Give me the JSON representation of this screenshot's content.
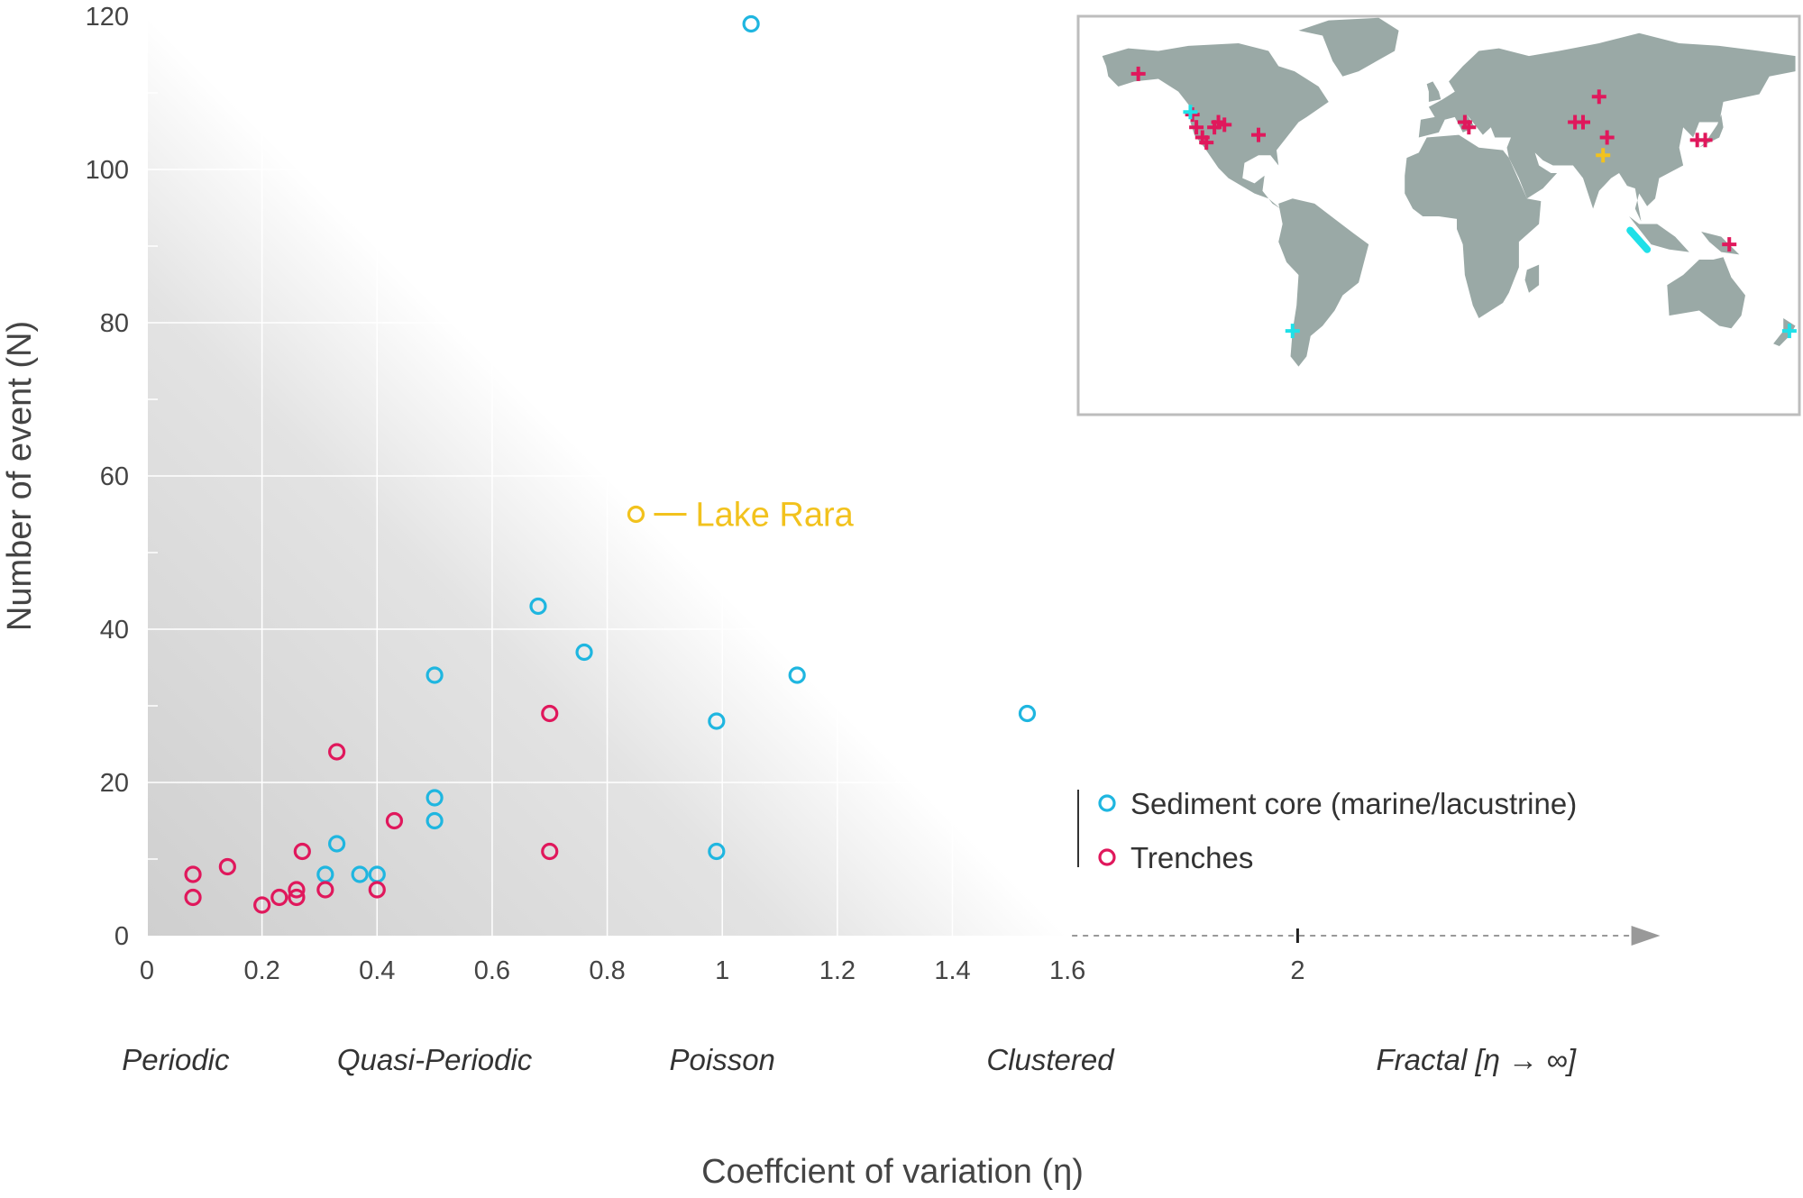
{
  "chart_data": {
    "type": "scatter",
    "xlabel": "Coeffcient of variation (η)",
    "ylabel": "Number of event (N)",
    "xlim": [
      0,
      2.63
    ],
    "ylim": [
      0,
      120
    ],
    "x_ticks": [
      "0",
      "0.2",
      "0.4",
      "0.6",
      "0.8",
      "1",
      "1.2",
      "1.4",
      "1.6",
      "2"
    ],
    "y_ticks": [
      "0",
      "20",
      "40",
      "60",
      "80",
      "100",
      "120"
    ],
    "grid": true,
    "background": "grey gradient in triangular area under diagonal from (0,120) to (1.6,0)",
    "regimes": [
      {
        "label": "Periodic",
        "x": 0.05
      },
      {
        "label": "Quasi-Periodic",
        "x": 0.5
      },
      {
        "label": "Poisson",
        "x": 1.0
      },
      {
        "label": "Clustered",
        "x": 1.57
      },
      {
        "label": "Fractal [η → ∞]",
        "x": 2.31
      }
    ],
    "legend_position": "lower-right",
    "series": [
      {
        "name": "Sediment core (marine/lacustrine)",
        "color": "#1fb6e0",
        "marker": "open-circle",
        "points": [
          {
            "x": 0.31,
            "y": 8
          },
          {
            "x": 0.33,
            "y": 12
          },
          {
            "x": 0.37,
            "y": 8
          },
          {
            "x": 0.4,
            "y": 8
          },
          {
            "x": 0.5,
            "y": 15
          },
          {
            "x": 0.5,
            "y": 18
          },
          {
            "x": 0.5,
            "y": 34
          },
          {
            "x": 0.68,
            "y": 43
          },
          {
            "x": 0.76,
            "y": 37
          },
          {
            "x": 0.99,
            "y": 11
          },
          {
            "x": 0.99,
            "y": 28
          },
          {
            "x": 1.05,
            "y": 119
          },
          {
            "x": 1.13,
            "y": 34
          },
          {
            "x": 1.53,
            "y": 29
          }
        ]
      },
      {
        "name": "Trenches",
        "color": "#e0185c",
        "marker": "open-circle",
        "points": [
          {
            "x": 0.08,
            "y": 5
          },
          {
            "x": 0.08,
            "y": 8
          },
          {
            "x": 0.14,
            "y": 9
          },
          {
            "x": 0.2,
            "y": 4
          },
          {
            "x": 0.23,
            "y": 5
          },
          {
            "x": 0.26,
            "y": 5
          },
          {
            "x": 0.26,
            "y": 6
          },
          {
            "x": 0.27,
            "y": 11
          },
          {
            "x": 0.31,
            "y": 6
          },
          {
            "x": 0.33,
            "y": 24
          },
          {
            "x": 0.4,
            "y": 6
          },
          {
            "x": 0.43,
            "y": 15
          },
          {
            "x": 0.7,
            "y": 11
          },
          {
            "x": 0.7,
            "y": 29
          }
        ]
      }
    ],
    "highlight": {
      "label": "Lake Rara",
      "x": 0.85,
      "y": 55,
      "color": "#f2c21d"
    }
  },
  "inset_map": {
    "land_color": "#9aa9a6",
    "markers": [
      {
        "color": "#e0185c",
        "lon": -150,
        "lat": 61
      },
      {
        "color": "#e0185c",
        "lon": -123,
        "lat": 45
      },
      {
        "color": "#e0185c",
        "lon": -121,
        "lat": 40
      },
      {
        "color": "#e0185c",
        "lon": -118,
        "lat": 36
      },
      {
        "color": "#e0185c",
        "lon": -116,
        "lat": 34
      },
      {
        "color": "#e0185c",
        "lon": -112,
        "lat": 40
      },
      {
        "color": "#e0185c",
        "lon": -110,
        "lat": 42
      },
      {
        "color": "#e0185c",
        "lon": -107,
        "lat": 41
      },
      {
        "color": "#e0185c",
        "lon": -90,
        "lat": 37
      },
      {
        "color": "#e0185c",
        "lon": 13,
        "lat": 42
      },
      {
        "color": "#e0185c",
        "lon": 15,
        "lat": 40
      },
      {
        "color": "#e0185c",
        "lon": 68,
        "lat": 42
      },
      {
        "color": "#e0185c",
        "lon": 72,
        "lat": 42
      },
      {
        "color": "#e0185c",
        "lon": 80,
        "lat": 52
      },
      {
        "color": "#e0185c",
        "lon": 84,
        "lat": 36
      },
      {
        "color": "#e0185c",
        "lon": 129,
        "lat": 35
      },
      {
        "color": "#e0185c",
        "lon": 133,
        "lat": 35
      },
      {
        "color": "#e0185c",
        "lon": 145,
        "lat": -6
      },
      {
        "color": "#1fe0e8",
        "lon": -124,
        "lat": 46
      },
      {
        "color": "#1fe0e8",
        "lon": 175,
        "lat": -40
      },
      {
        "color": "#1fe0e8",
        "lon": -73,
        "lat": -40
      },
      {
        "color": "#f2c21d",
        "lon": 82,
        "lat": 29
      }
    ],
    "cyan_track": "Sumatra margin"
  }
}
